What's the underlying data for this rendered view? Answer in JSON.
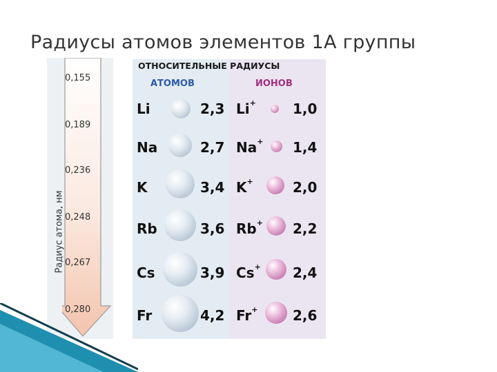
{
  "title": "Радиусы атомов элементов 1А группы",
  "scale": {
    "axis_label": "Радиус атома, нм",
    "ticks": [
      "0,155",
      "0,189",
      "0,236",
      "0,248",
      "0,267",
      "0,280"
    ]
  },
  "table": {
    "header_main": "ОТНОСИТЕЛЬНЫЕ РАДИУСЫ",
    "header_atoms": "АТОМОВ",
    "header_ions": "ИОНОВ",
    "rows": [
      {
        "atom": "Li",
        "atom_value": "2,3",
        "ion": "Li",
        "ion_charge": "+",
        "ion_value": "1,0"
      },
      {
        "atom": "Na",
        "atom_value": "2,7",
        "ion": "Na",
        "ion_charge": "+",
        "ion_value": "1,4"
      },
      {
        "atom": "K",
        "atom_value": "3,4",
        "ion": "K",
        "ion_charge": "+",
        "ion_value": "2,0"
      },
      {
        "atom": "Rb",
        "atom_value": "3,6",
        "ion": "Rb",
        "ion_charge": "+",
        "ion_value": "2,2"
      },
      {
        "atom": "Cs",
        "atom_value": "3,9",
        "ion": "Cs",
        "ion_charge": "+",
        "ion_value": "2,4"
      },
      {
        "atom": "Fr",
        "atom_value": "4,2",
        "ion": "Fr",
        "ion_charge": "+",
        "ion_value": "2,6"
      }
    ]
  },
  "colors": {
    "atoms_header": "#2d5aa8",
    "ions_header": "#a0317f",
    "deco_teal": "#1f8fb0"
  }
}
